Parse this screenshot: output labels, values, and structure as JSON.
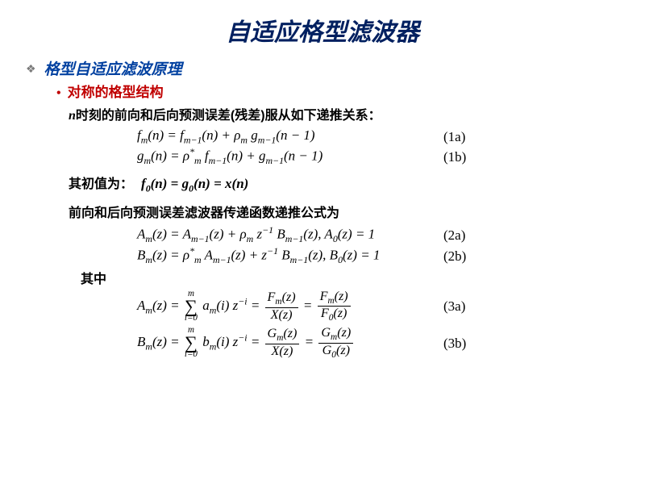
{
  "colors": {
    "title": "#002060",
    "section": "#0040a0",
    "subsection": "#c00000",
    "diamond": "#7a7a7a",
    "body": "#000000",
    "background": "#ffffff"
  },
  "fonts": {
    "title_size": 30,
    "section_size": 19,
    "subsection_size": 17,
    "body_size": 16,
    "eq_size": 17
  },
  "title": "自适应格型滤波器",
  "section": "格型自适应滤波原理",
  "subsection": "对称的格型结构",
  "line1_prefix_var": "n",
  "line1": "时刻的前向和后向预测误差(残差)服从如下递推关系：",
  "eq1a": "f_m(n) = f_{m-1}(n) + ρ_m g_{m-1}(n-1)",
  "eq1a_label": "(1a)",
  "eq1b": "g_m(n) = ρ*_m f_{m-1}(n) + g_{m-1}(n-1)",
  "eq1b_label": "(1b)",
  "line2": "其初值为：",
  "eq_init": "f_0(n) = g_0(n) = x(n)",
  "line3": "前向和后向预测误差滤波器传递函数递推公式为",
  "eq2a": "A_m(z) = A_{m-1}(z) + ρ_m z^{-1} B_{m-1}(z), A_0(z) = 1",
  "eq2a_label": "(2a)",
  "eq2b": "B_m(z) = ρ*_m A_{m-1}(z) + z^{-1} B_{m-1}(z), B_0(z) = 1",
  "eq2b_label": "(2b)",
  "line4": "其中",
  "eq3a": "A_m(z) = Σ_{i=0}^{m} a_m(i) z^{-i} = F_m(z)/X(z) = F_m(z)/F_0(z)",
  "eq3a_label": "(3a)",
  "eq3b": "B_m(z) = Σ_{i=0}^{m} b_m(i) z^{-i} = G_m(z)/X(z) = G_m(z)/G_0(z)",
  "eq3b_label": "(3b)"
}
